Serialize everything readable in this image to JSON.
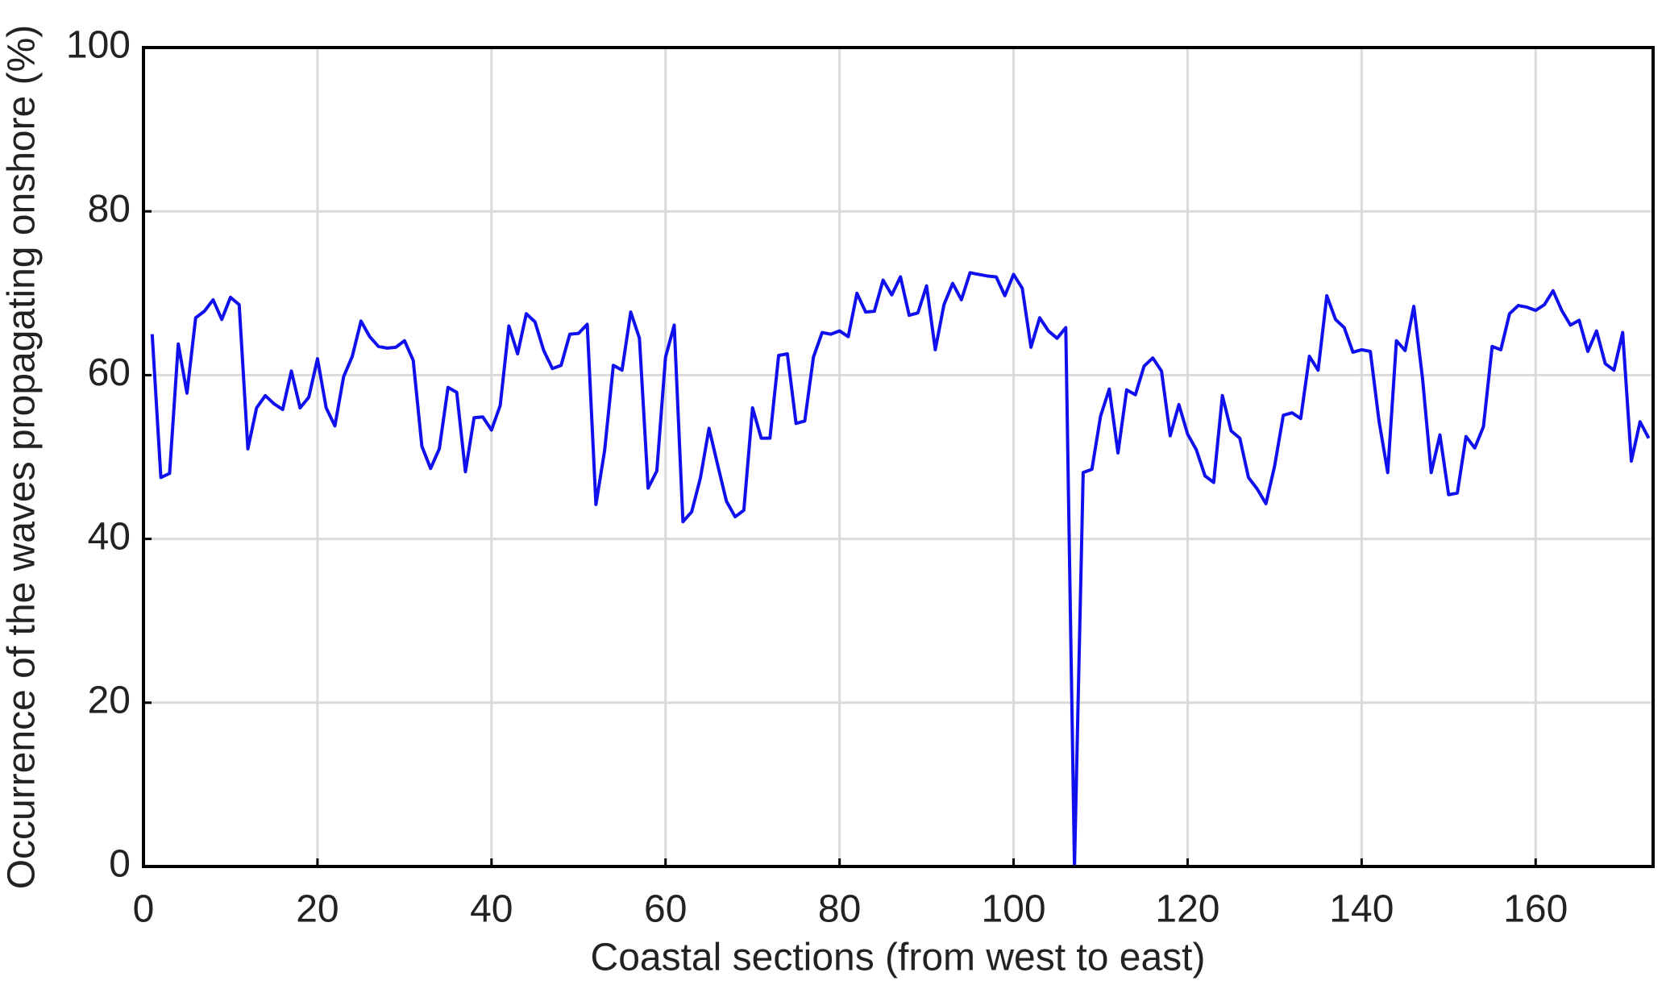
{
  "chart_data": {
    "type": "line",
    "xlabel": "Coastal sections (from west to east)",
    "ylabel": "Occurrence of the waves propagating onshore (%)",
    "x": [
      1,
      2,
      3,
      4,
      5,
      6,
      7,
      8,
      9,
      10,
      11,
      12,
      13,
      14,
      15,
      16,
      17,
      18,
      19,
      20,
      21,
      22,
      23,
      24,
      25,
      26,
      27,
      28,
      29,
      30,
      31,
      32,
      33,
      34,
      35,
      36,
      37,
      38,
      39,
      40,
      41,
      42,
      43,
      44,
      45,
      46,
      47,
      48,
      49,
      50,
      51,
      52,
      53,
      54,
      55,
      56,
      57,
      58,
      59,
      60,
      61,
      62,
      63,
      64,
      65,
      66,
      67,
      68,
      69,
      70,
      71,
      72,
      73,
      74,
      75,
      76,
      77,
      78,
      79,
      80,
      81,
      82,
      83,
      84,
      85,
      86,
      87,
      88,
      89,
      90,
      91,
      92,
      93,
      94,
      95,
      96,
      97,
      98,
      99,
      100,
      101,
      102,
      103,
      104,
      105,
      106,
      107,
      108,
      109,
      110,
      111,
      112,
      113,
      114,
      115,
      116,
      117,
      118,
      119,
      120,
      121,
      122,
      123,
      124,
      125,
      126,
      127,
      128,
      129,
      130,
      131,
      132,
      133,
      134,
      135,
      136,
      137,
      138,
      139,
      140,
      141,
      142,
      143,
      144,
      145,
      146,
      147,
      148,
      149,
      150,
      151,
      152,
      153,
      154,
      155,
      156,
      157,
      158,
      159,
      160,
      161,
      162,
      163,
      164,
      165,
      166,
      167,
      168,
      169,
      170,
      171,
      172,
      173
    ],
    "series": [
      {
        "name": "Occurrence",
        "color": "#1010ee",
        "values": [
          65,
          47.5,
          48,
          63.8,
          57.8,
          67,
          67.8,
          69.2,
          66.8,
          69.5,
          68.6,
          51,
          56,
          57.5,
          56.5,
          55.8,
          60.5,
          56,
          57.3,
          62,
          56,
          53.8,
          59.8,
          62.3,
          66.6,
          64.7,
          63.5,
          63.3,
          63.4,
          64.2,
          61.8,
          51.3,
          48.6,
          51,
          58.5,
          57.9,
          48.2,
          54.8,
          54.9,
          53.3,
          56.3,
          66,
          62.6,
          67.5,
          66.5,
          63,
          60.8,
          61.2,
          65,
          65.1,
          66.2,
          44.2,
          50.8,
          61.2,
          60.6,
          67.7,
          64.5,
          46.2,
          48.3,
          62.2,
          66.1,
          42.1,
          43.3,
          47.4,
          53.5,
          49,
          44.6,
          42.7,
          43.5,
          56,
          52.3,
          52.3,
          62.4,
          62.6,
          54.1,
          54.4,
          62.2,
          65.2,
          65,
          65.4,
          64.7,
          70,
          67.7,
          67.8,
          71.6,
          69.8,
          72,
          67.3,
          67.6,
          70.9,
          63.1,
          68.6,
          71.2,
          69.2,
          72.5,
          72.3,
          72.1,
          72,
          69.7,
          72.3,
          70.6,
          63.4,
          67,
          65.4,
          64.5,
          65.8,
          0,
          48.1,
          48.5,
          55,
          58.3,
          50.5,
          58.2,
          57.6,
          61.1,
          62.1,
          60.5,
          52.6,
          56.4,
          52.8,
          50.9,
          47.7,
          46.9,
          57.5,
          53.2,
          52.3,
          47.5,
          46.1,
          44.3,
          48.9,
          55.1,
          55.4,
          54.7,
          62.3,
          60.6,
          69.7,
          66.8,
          65.8,
          62.8,
          63.1,
          62.9,
          54.4,
          48.1,
          64.2,
          63,
          68.4,
          59.6,
          48.1,
          52.7,
          45.4,
          45.6,
          52.5,
          51.1,
          53.7,
          63.5,
          63.1,
          67.5,
          68.5,
          68.3,
          67.9,
          68.6,
          70.3,
          67.9,
          66.1,
          66.7,
          62.9,
          65.4,
          61.4,
          60.6,
          65.2,
          49.5,
          54.3,
          52.3
        ]
      }
    ],
    "xlim": [
      0,
      173.5
    ],
    "ylim": [
      0,
      100
    ],
    "xticks": [
      0,
      20,
      40,
      60,
      80,
      100,
      120,
      140,
      160
    ],
    "yticks": [
      0,
      20,
      40,
      60,
      80,
      100
    ],
    "grid": true
  }
}
